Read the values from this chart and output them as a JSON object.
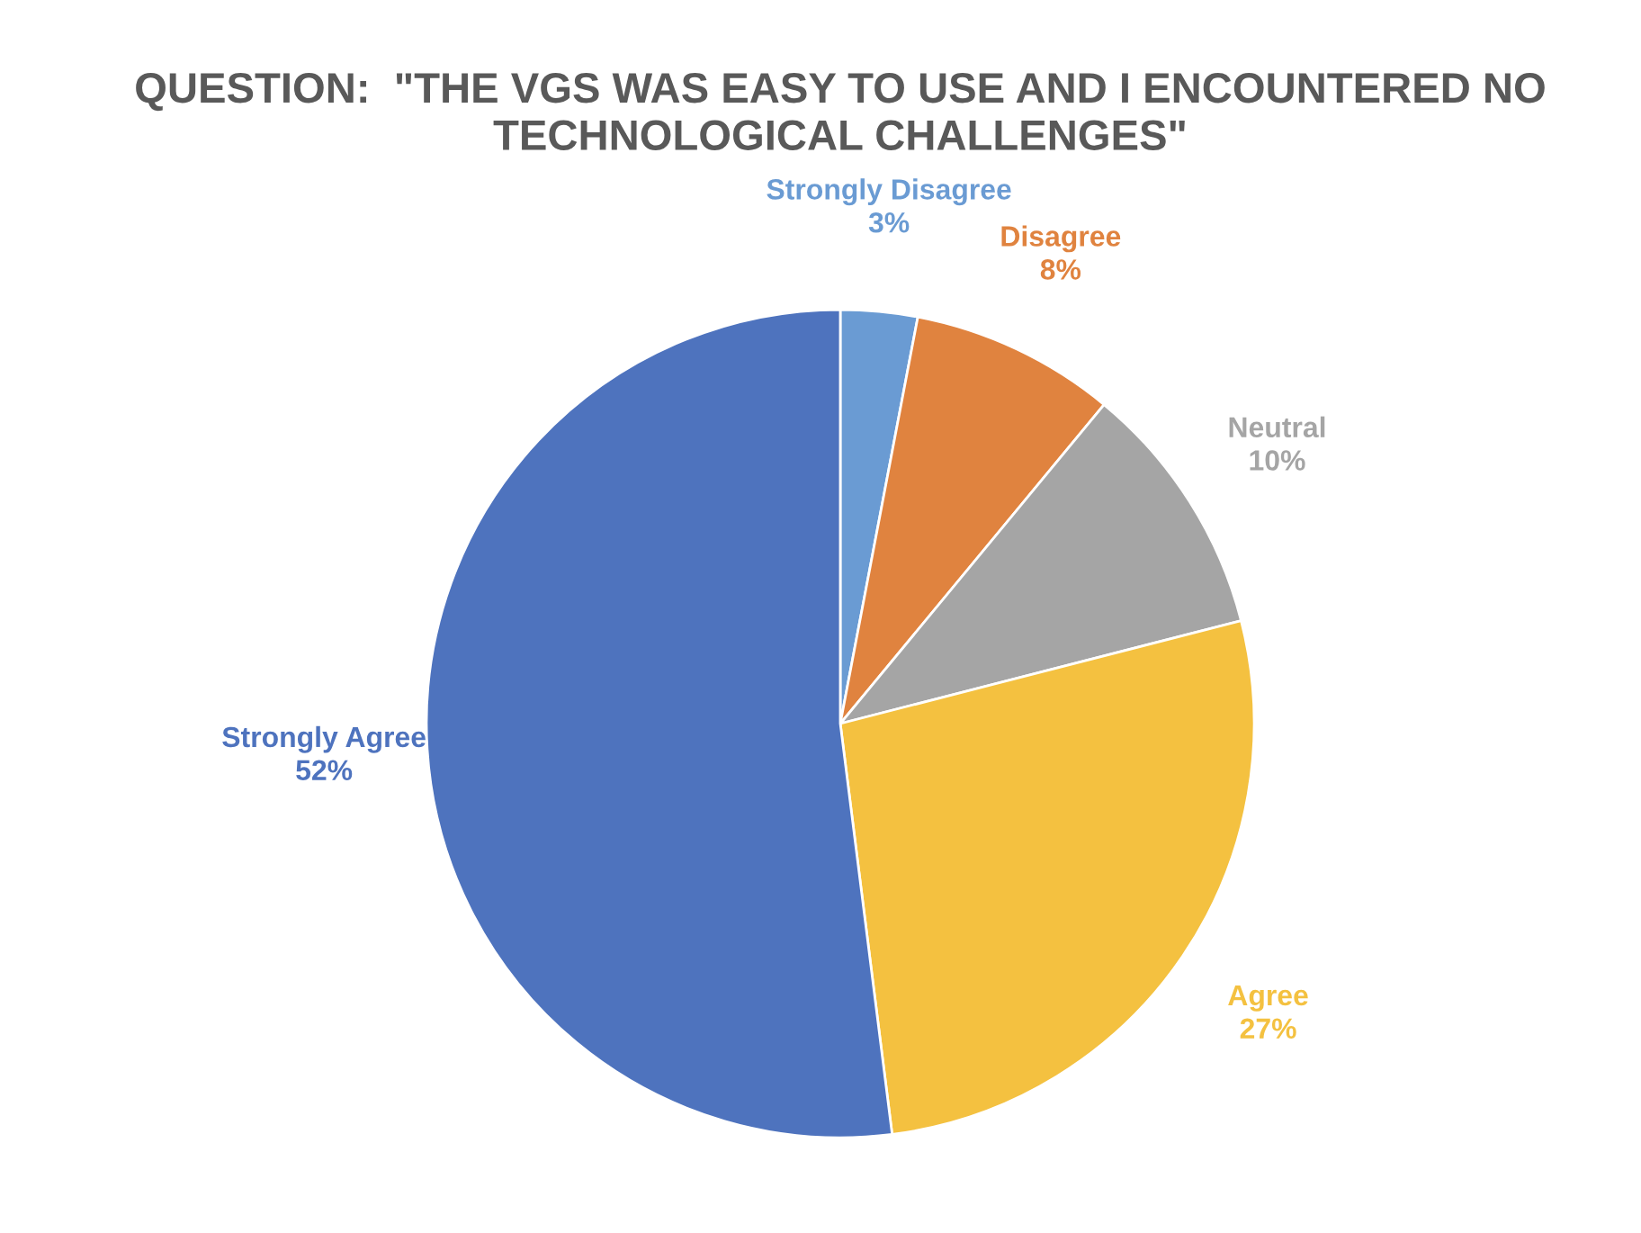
{
  "chart_data": {
    "type": "pie",
    "title": "QUESTION:  \"THE VGS WAS EASY TO USE AND I ENCOUNTERED NO TECHNOLOGICAL CHALLENGES\"",
    "categories": [
      "Strongly Disagree",
      "Disagree",
      "Neutral",
      "Agree",
      "Strongly Agree"
    ],
    "values": [
      3,
      8,
      10,
      27,
      52
    ],
    "value_labels": [
      "3%",
      "8%",
      "10%",
      "27%",
      "52%"
    ],
    "colors": [
      "#6a9bd3",
      "#e0833f",
      "#a5a5a5",
      "#f4c140",
      "#4e73be"
    ]
  }
}
